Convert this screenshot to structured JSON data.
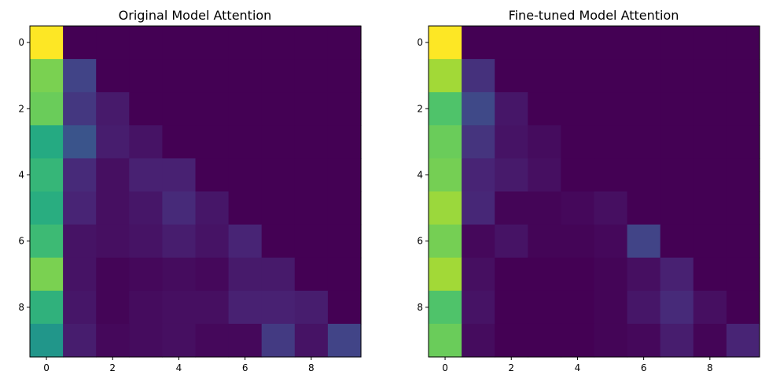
{
  "chart_data": [
    {
      "type": "heatmap",
      "title": "Original Model Attention",
      "xlabel": "",
      "ylabel": "",
      "rows": [
        0,
        1,
        2,
        3,
        4,
        5,
        6,
        7,
        8,
        9
      ],
      "cols": [
        0,
        1,
        2,
        3,
        4,
        5,
        6,
        7,
        8,
        9
      ],
      "colormap": "viridis",
      "vmin": 0.0,
      "vmax": 1.0,
      "xticks": [
        "0",
        "2",
        "4",
        "6",
        "8"
      ],
      "yticks": [
        "0",
        "2",
        "4",
        "6",
        "8"
      ],
      "values": [
        [
          1.0,
          0.0,
          0.0,
          0.0,
          0.0,
          0.0,
          0.0,
          0.0,
          0.0,
          0.0
        ],
        [
          0.8,
          0.2,
          0.0,
          0.0,
          0.0,
          0.0,
          0.0,
          0.0,
          0.0,
          0.0
        ],
        [
          0.77,
          0.16,
          0.07,
          0.0,
          0.0,
          0.0,
          0.0,
          0.0,
          0.0,
          0.0
        ],
        [
          0.61,
          0.26,
          0.08,
          0.05,
          0.0,
          0.0,
          0.0,
          0.0,
          0.0,
          0.0
        ],
        [
          0.66,
          0.12,
          0.04,
          0.09,
          0.09,
          0.0,
          0.0,
          0.0,
          0.0,
          0.0
        ],
        [
          0.62,
          0.1,
          0.04,
          0.06,
          0.12,
          0.06,
          0.0,
          0.0,
          0.0,
          0.0
        ],
        [
          0.68,
          0.05,
          0.04,
          0.05,
          0.08,
          0.05,
          0.1,
          0.0,
          0.0,
          0.0
        ],
        [
          0.8,
          0.05,
          0.01,
          0.02,
          0.03,
          0.02,
          0.07,
          0.07,
          0.0,
          0.0
        ],
        [
          0.64,
          0.06,
          0.01,
          0.03,
          0.04,
          0.04,
          0.09,
          0.09,
          0.08,
          0.0
        ],
        [
          0.52,
          0.08,
          0.02,
          0.03,
          0.04,
          0.02,
          0.02,
          0.17,
          0.05,
          0.2
        ]
      ]
    },
    {
      "type": "heatmap",
      "title": "Fine-tuned Model Attention",
      "xlabel": "",
      "ylabel": "",
      "rows": [
        0,
        1,
        2,
        3,
        4,
        5,
        6,
        7,
        8,
        9
      ],
      "cols": [
        0,
        1,
        2,
        3,
        4,
        5,
        6,
        7,
        8,
        9
      ],
      "colormap": "viridis",
      "vmin": 0.0,
      "vmax": 1.0,
      "xticks": [
        "0",
        "2",
        "4",
        "6",
        "8"
      ],
      "yticks": [
        "0",
        "2",
        "4",
        "6",
        "8"
      ],
      "values": [
        [
          1.0,
          0.0,
          0.0,
          0.0,
          0.0,
          0.0,
          0.0,
          0.0,
          0.0,
          0.0
        ],
        [
          0.86,
          0.14,
          0.0,
          0.0,
          0.0,
          0.0,
          0.0,
          0.0,
          0.0,
          0.0
        ],
        [
          0.72,
          0.22,
          0.06,
          0.0,
          0.0,
          0.0,
          0.0,
          0.0,
          0.0,
          0.0
        ],
        [
          0.77,
          0.15,
          0.05,
          0.03,
          0.0,
          0.0,
          0.0,
          0.0,
          0.0,
          0.0
        ],
        [
          0.79,
          0.1,
          0.07,
          0.04,
          0.0,
          0.0,
          0.0,
          0.0,
          0.0,
          0.0
        ],
        [
          0.85,
          0.11,
          0.01,
          0.01,
          0.02,
          0.04,
          0.0,
          0.0,
          0.0,
          0.0
        ],
        [
          0.79,
          0.02,
          0.05,
          0.01,
          0.01,
          0.02,
          0.2,
          0.0,
          0.0,
          0.0
        ],
        [
          0.86,
          0.04,
          0.0,
          0.0,
          0.0,
          0.01,
          0.04,
          0.09,
          0.0,
          0.0
        ],
        [
          0.72,
          0.05,
          0.0,
          0.0,
          0.0,
          0.01,
          0.06,
          0.12,
          0.04,
          0.0
        ],
        [
          0.77,
          0.03,
          0.0,
          0.0,
          0.0,
          0.01,
          0.02,
          0.08,
          0.01,
          0.1
        ]
      ]
    }
  ]
}
